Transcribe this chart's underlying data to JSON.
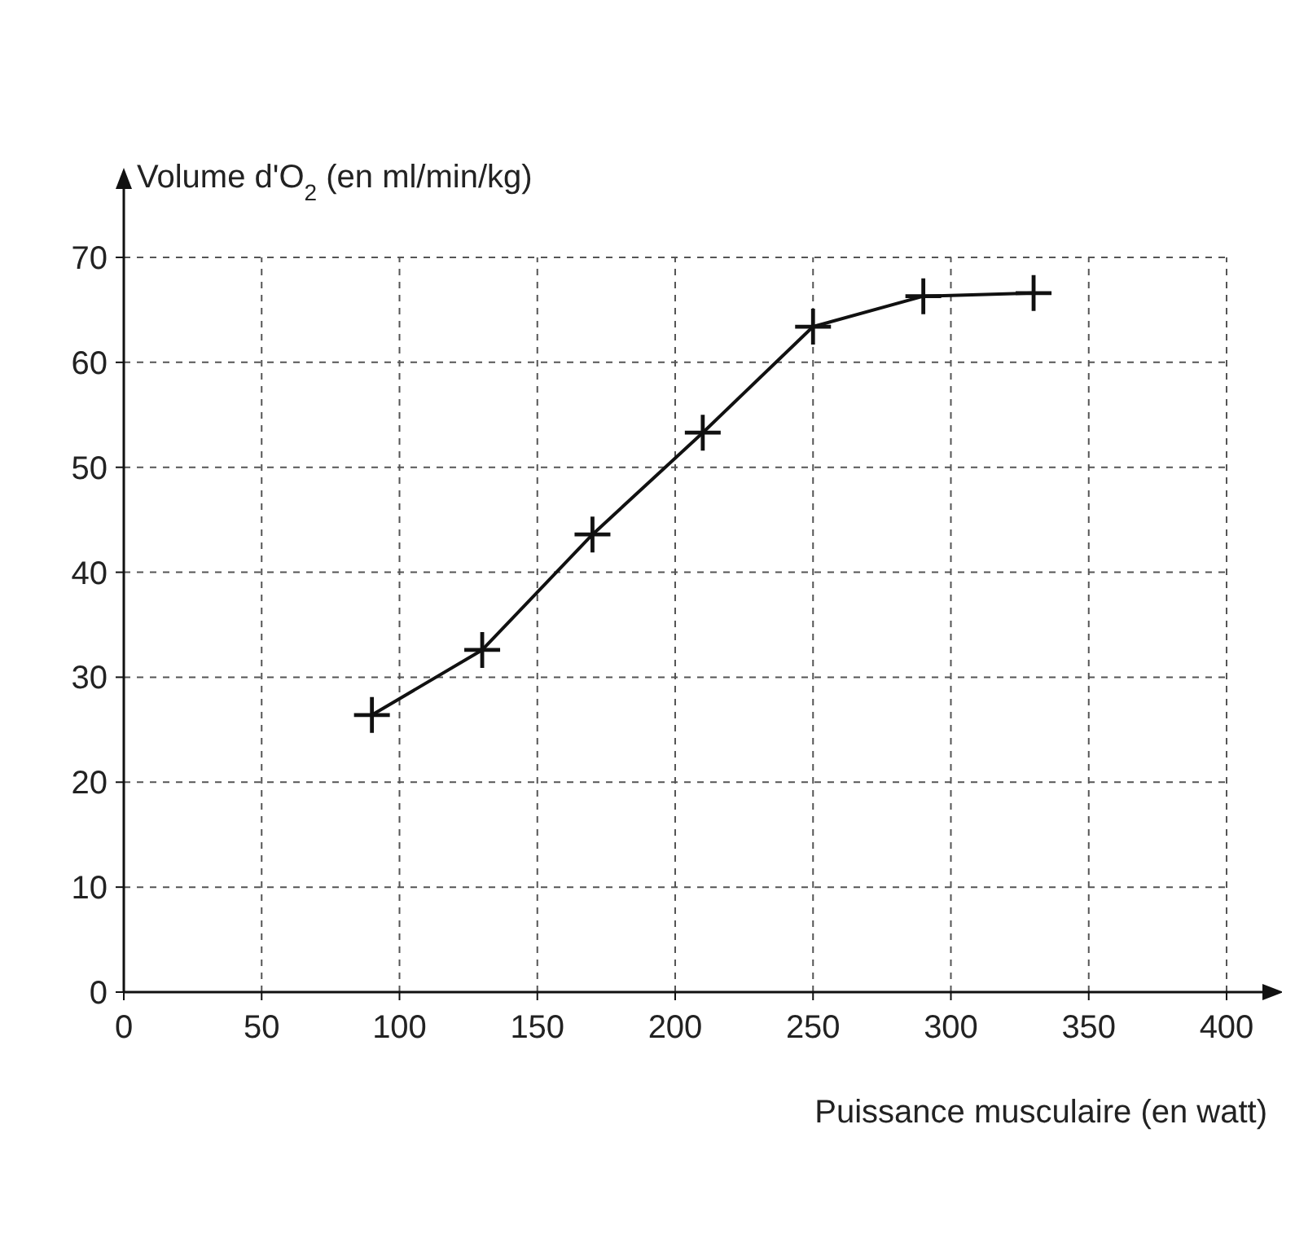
{
  "chart_data": {
    "type": "line",
    "ylabel": "Volume d'O$_{2}$ (en ml/min/kg)",
    "xlabel": "Puissance musculaire (en watt)",
    "x": [
      90,
      130,
      170,
      210,
      250,
      290,
      330
    ],
    "series": [
      {
        "color": "#111111",
        "values": [
          26.4,
          32.6,
          43.6,
          53.3,
          63.4,
          66.3,
          66.6
        ]
      }
    ],
    "xlim": [
      0,
      400
    ],
    "xticks": [
      0,
      50,
      100,
      150,
      200,
      250,
      300,
      350,
      400
    ],
    "ylim": [
      0,
      70
    ],
    "yticks": [
      0,
      10,
      20,
      30,
      40,
      50,
      60,
      70
    ],
    "grid": true,
    "marker": "cross",
    "line_style": "solid"
  }
}
